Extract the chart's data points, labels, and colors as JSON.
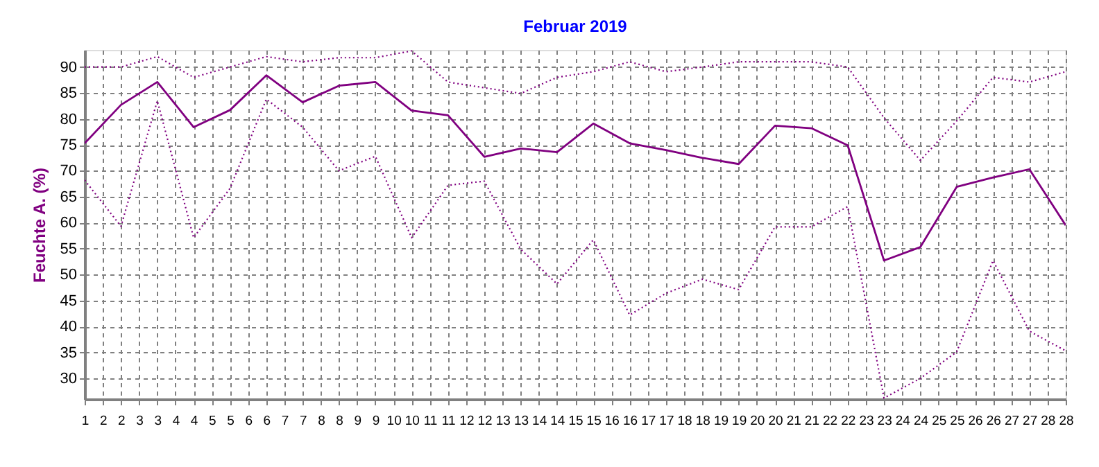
{
  "chart_data": {
    "type": "line",
    "title": "Februar 2019",
    "ylabel": "Feuchte A. (%)",
    "x": [
      1,
      2,
      3,
      4,
      5,
      6,
      7,
      8,
      9,
      10,
      11,
      12,
      13,
      14,
      15,
      16,
      17,
      18,
      19,
      20,
      21,
      22,
      23,
      24,
      25,
      26,
      27,
      28
    ],
    "series": [
      {
        "color": "#800080",
        "line_style": "dotted",
        "values": [
          90,
          90,
          92,
          88,
          90,
          92,
          91,
          91.8,
          91.8,
          93.1,
          87.1,
          86,
          84.9,
          88,
          89.1,
          91,
          89.1,
          90,
          91,
          91,
          91,
          90,
          80.2,
          72,
          79.6,
          88,
          87.1,
          89.1
        ]
      },
      {
        "color": "#800080",
        "line_style": "solid",
        "values": [
          75.3,
          82.7,
          87.1,
          78.4,
          81.7,
          88.4,
          83.2,
          86.4,
          87.1,
          81.6,
          80.7,
          72.7,
          74.3,
          73.6,
          79.1,
          75.3,
          74.0,
          72.5,
          71.3,
          78.7,
          78.2,
          74.9,
          52.7,
          55.3,
          66.9,
          68.7,
          70.3,
          59.5
        ]
      },
      {
        "color": "#800080",
        "line_style": "dotted",
        "values": [
          68.2,
          59.3,
          83.5,
          57.1,
          66.6,
          83.8,
          78.4,
          70,
          72.8,
          57.1,
          67.2,
          68,
          54.9,
          48.2,
          56.7,
          42.2,
          46.4,
          49.1,
          47.1,
          59.2,
          59.2,
          63.1,
          26.2,
          30,
          35.1,
          52.7,
          39.1,
          35.3
        ]
      }
    ],
    "xlim": [
      1,
      28
    ],
    "xticks": [
      1,
      {
        "value": 1.5,
        "label": "2"
      },
      2,
      {
        "value": 2.5,
        "label": "3"
      },
      3,
      {
        "value": 3.5,
        "label": "4"
      },
      4,
      {
        "value": 4.5,
        "label": "5"
      },
      5,
      {
        "value": 5.5,
        "label": "6"
      },
      6,
      {
        "value": 6.5,
        "label": "7"
      },
      7,
      {
        "value": 7.5,
        "label": "8"
      },
      8,
      {
        "value": 8.5,
        "label": "9"
      },
      9,
      {
        "value": 9.5,
        "label": "10"
      },
      10,
      {
        "value": 10.5,
        "label": "11"
      },
      11,
      {
        "value": 11.5,
        "label": "12"
      },
      12,
      {
        "value": 12.5,
        "label": "13"
      },
      13,
      {
        "value": 13.5,
        "label": "14"
      },
      14,
      {
        "value": 14.5,
        "label": "15"
      },
      15,
      {
        "value": 15.5,
        "label": "16"
      },
      16,
      {
        "value": 16.5,
        "label": "17"
      },
      17,
      {
        "value": 17.5,
        "label": "18"
      },
      18,
      {
        "value": 18.5,
        "label": "19"
      },
      19,
      {
        "value": 19.5,
        "label": "20"
      },
      20,
      {
        "value": 20.5,
        "label": "21"
      },
      21,
      {
        "value": 21.5,
        "label": "22"
      },
      22,
      {
        "value": 22.5,
        "label": "23"
      },
      23,
      {
        "value": 23.5,
        "label": "24"
      },
      24,
      {
        "value": 24.5,
        "label": "25"
      },
      25,
      {
        "value": 25.5,
        "label": "26"
      },
      26,
      {
        "value": 26.5,
        "label": "27"
      },
      27,
      {
        "value": 27.5,
        "label": "28"
      },
      28
    ],
    "ylim": [
      26,
      93.3
    ],
    "yticks": [
      30,
      35,
      40,
      45,
      50,
      55,
      60,
      65,
      70,
      75,
      80,
      85,
      90
    ],
    "grid": true,
    "marker": "none"
  }
}
